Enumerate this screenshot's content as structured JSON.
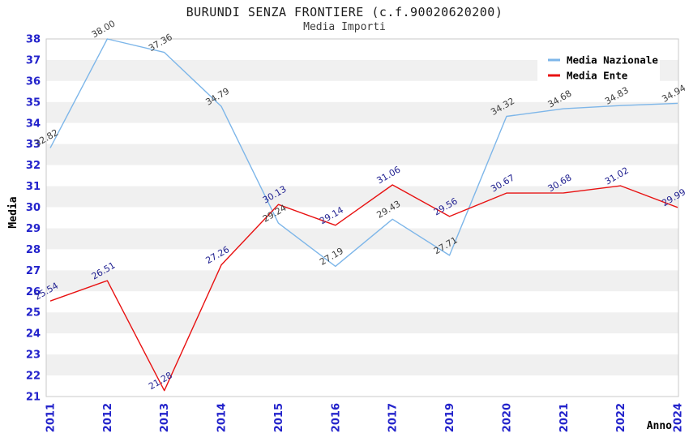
{
  "page": {
    "title": "BURUNDI SENZA FRONTIERE (c.f.90020620200)",
    "subtitle": "Media Importi"
  },
  "chart_data": {
    "type": "line",
    "title": "BURUNDI SENZA FRONTIERE (c.f.90020620200)",
    "subtitle": "Media Importi",
    "xlabel": "Anno",
    "ylabel": "Media",
    "ylim": [
      21,
      38
    ],
    "ytick_step": 1,
    "grid": "striped-horizontal-bands",
    "stripe_colors": [
      "#ffffff",
      "#f0f0f0"
    ],
    "plot_border_color": "#c8c8c8",
    "axis_tick_color": "#2323cb",
    "axis_title_color": "#000000",
    "legend_position": "top-right",
    "legend_background": "#ffffff",
    "categories": [
      "2011",
      "2012",
      "2013",
      "2014",
      "2015",
      "2016",
      "2017",
      "2019",
      "2020",
      "2021",
      "2022",
      "2024"
    ],
    "series": [
      {
        "name": "Media Nazionale",
        "color": "#7db6e9",
        "label_color": "#3d3d3d",
        "values": [
          32.82,
          38.0,
          37.36,
          34.79,
          29.24,
          27.19,
          29.43,
          27.71,
          34.32,
          34.68,
          34.83,
          34.94
        ]
      },
      {
        "name": "Media Ente",
        "color": "#e81111",
        "label_color": "#1f1f90",
        "values": [
          25.54,
          26.51,
          21.28,
          27.26,
          30.13,
          29.14,
          31.06,
          29.56,
          30.67,
          30.68,
          31.02,
          29.99
        ]
      }
    ],
    "value_label_format": "two-decimals",
    "value_label_rotation_deg": -30
  }
}
